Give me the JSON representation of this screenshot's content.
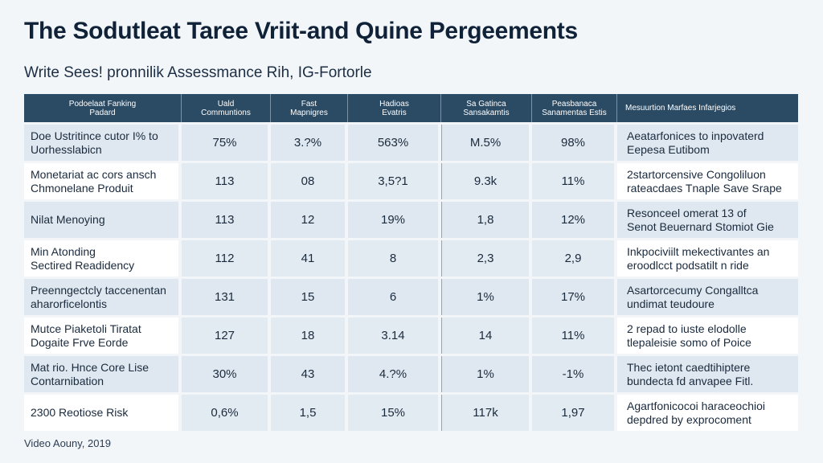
{
  "title": "The Sodutleat Taree Vriit-and Quine Pergeements",
  "subtitle": "Write Sees! pronnilik Assessmance Rih, IG-Fortorle",
  "headers": [
    "Podoelaat Fanking\nPadard",
    "Uald\nCommuntions",
    "Fast\nMapnigres",
    "Hadioas\nEvatris",
    "Sa Gatinca\nSansakamtis",
    "Peasbanaca\nSanamentas Estis",
    "Mesuurtion Marfaes Infarjegios"
  ],
  "rows": [
    {
      "metric": "Doe Ustritince cutor I% to\nUorhesslabicn",
      "v1": "75%",
      "v2": "3.?%",
      "v3": "563%",
      "v4": "M.5%",
      "v5": "98%",
      "desc": "Aeatarfonices to inpovaterd\nEepesa Eutibom"
    },
    {
      "metric": "Monetariat ac cors ansch\nChmonelane Produit",
      "v1": "113",
      "v2": "08",
      "v3": "3,5?1",
      "v4": "9.3k",
      "v5": "11%",
      "desc": "2startorcensive Congoliluon\nrateacdaes Tnaple Save Srape"
    },
    {
      "metric": "Nilat Menoying",
      "v1": "113",
      "v2": "12",
      "v3": "19%",
      "v4": "1,8",
      "v5": "12%",
      "desc": "Resonceel omerat 13 of\nSenot Beuernard Stomiot Gie"
    },
    {
      "metric": "Min Atonding\nSectired Readidency",
      "v1": "112",
      "v2": "41",
      "v3": "8",
      "v4": "2,3",
      "v5": "2,9",
      "desc": "Inkpociviilt mekectivantes an\neroodlcct podsatilt n ride"
    },
    {
      "metric": "Preenngectcly taccenentan\naharorficelontis",
      "v1": "131",
      "v2": "15",
      "v3": "6",
      "v4": "1%",
      "v5": "17%",
      "desc": "Asartorcecumy Congalltca\nundimat teudoure"
    },
    {
      "metric": "Mutce Piaketoli Tiratat\nDogaite Frve Eorde",
      "v1": "127",
      "v2": "18",
      "v3": "3.14",
      "v4": "14",
      "v5": "11%",
      "desc": "2 repad to iuste elodolle\ntlepaleisie somo of Poice"
    },
    {
      "metric": "Mat rio. Hnce Core Lise\nContarnibation",
      "v1": "30%",
      "v2": "43",
      "v3": "4.?%",
      "v4": "1%",
      "v5": "-1%",
      "desc": "Thec ietont caedtihiptere\nbundecta fd anvapee Fitl."
    },
    {
      "metric": "2300 Reotiose Risk",
      "v1": "0,6%",
      "v2": "1,5",
      "v3": "15%",
      "v4": "117k",
      "v5": "1,97",
      "desc": "Agartfonicocoi haraceochioi\ndepdred by exprocoment"
    }
  ],
  "footer": "Video Aouny, 2019"
}
